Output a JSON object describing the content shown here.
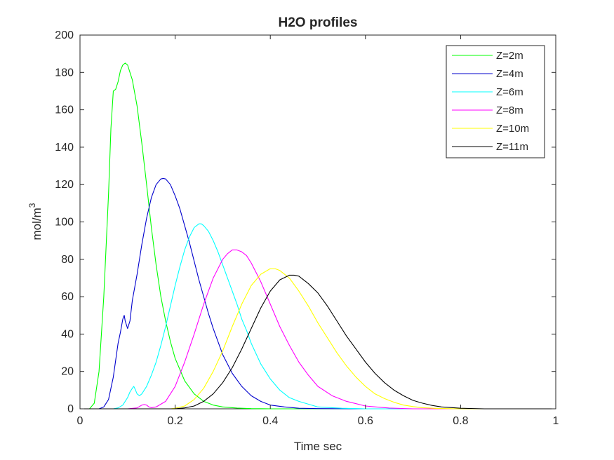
{
  "chart_data": {
    "type": "line",
    "title": "H2O profiles",
    "xlabel": "Time sec",
    "ylabel": "mol/m",
    "ylabel_superscript": "3",
    "xlim": [
      0,
      1
    ],
    "ylim": [
      0,
      200
    ],
    "xticks": [
      "0",
      "0.2",
      "0.4",
      "0.6",
      "0.8",
      "1"
    ],
    "yticks": [
      "0",
      "20",
      "40",
      "60",
      "80",
      "100",
      "120",
      "140",
      "160",
      "180",
      "200"
    ],
    "grid": false,
    "legend_position": "top-right",
    "series": [
      {
        "name": "Z=2m",
        "color": "#00ff00",
        "x": [
          0,
          0.02,
          0.03,
          0.04,
          0.05,
          0.06,
          0.065,
          0.07,
          0.075,
          0.08,
          0.085,
          0.09,
          0.095,
          0.1,
          0.11,
          0.12,
          0.13,
          0.14,
          0.15,
          0.16,
          0.17,
          0.18,
          0.19,
          0.2,
          0.22,
          0.24,
          0.26,
          0.28,
          0.3,
          0.33,
          0.36,
          0.4,
          0.5,
          1
        ],
        "y": [
          0,
          0,
          3,
          20,
          60,
          115,
          150,
          170,
          171,
          175,
          181,
          184,
          185,
          184,
          176,
          162,
          142,
          120,
          97,
          77,
          60,
          47,
          36,
          27,
          15,
          8,
          4,
          2,
          1,
          0.4,
          0.1,
          0,
          0,
          0
        ]
      },
      {
        "name": "Z=4m",
        "color": "#0000cd",
        "x": [
          0,
          0.04,
          0.05,
          0.06,
          0.07,
          0.08,
          0.085,
          0.09,
          0.093,
          0.095,
          0.1,
          0.105,
          0.11,
          0.12,
          0.13,
          0.14,
          0.15,
          0.16,
          0.17,
          0.175,
          0.18,
          0.19,
          0.2,
          0.21,
          0.22,
          0.23,
          0.24,
          0.25,
          0.26,
          0.27,
          0.28,
          0.29,
          0.3,
          0.32,
          0.34,
          0.36,
          0.38,
          0.4,
          0.43,
          0.46,
          0.5,
          0.6,
          1
        ],
        "y": [
          0,
          0,
          1,
          5,
          17,
          35,
          41,
          48,
          50,
          47,
          43,
          47,
          58,
          72,
          88,
          102,
          113,
          120,
          123,
          123.3,
          123,
          120,
          114,
          107,
          98,
          89,
          79,
          69,
          60,
          51,
          43,
          36,
          29,
          19,
          12,
          7,
          4,
          2,
          1,
          0.3,
          0.1,
          0,
          0
        ]
      },
      {
        "name": "Z=6m",
        "color": "#00ffff",
        "x": [
          0,
          0.07,
          0.08,
          0.09,
          0.1,
          0.105,
          0.11,
          0.113,
          0.115,
          0.12,
          0.125,
          0.13,
          0.14,
          0.15,
          0.16,
          0.17,
          0.18,
          0.19,
          0.2,
          0.21,
          0.22,
          0.23,
          0.24,
          0.25,
          0.255,
          0.26,
          0.27,
          0.28,
          0.29,
          0.3,
          0.31,
          0.32,
          0.33,
          0.34,
          0.35,
          0.36,
          0.38,
          0.4,
          0.42,
          0.44,
          0.46,
          0.5,
          0.55,
          0.6,
          1
        ],
        "y": [
          0,
          0,
          0.5,
          2,
          6,
          9,
          11,
          12,
          11,
          8,
          7,
          8,
          12,
          18,
          25,
          34,
          44,
          55,
          66,
          76,
          85,
          92,
          97,
          99,
          99,
          98,
          95,
          90,
          84,
          77,
          70,
          63,
          56,
          48,
          42,
          35,
          24,
          16,
          10,
          6,
          4,
          1,
          0.3,
          0,
          0
        ]
      },
      {
        "name": "Z=8m",
        "color": "#ff00ff",
        "x": [
          0,
          0.1,
          0.12,
          0.13,
          0.135,
          0.14,
          0.145,
          0.15,
          0.16,
          0.18,
          0.2,
          0.22,
          0.24,
          0.26,
          0.28,
          0.3,
          0.31,
          0.32,
          0.33,
          0.34,
          0.35,
          0.36,
          0.38,
          0.4,
          0.42,
          0.44,
          0.46,
          0.48,
          0.5,
          0.53,
          0.56,
          0.6,
          0.65,
          0.7,
          1
        ],
        "y": [
          0,
          0,
          0.5,
          2,
          2.3,
          2,
          1,
          0.6,
          1,
          4,
          12,
          25,
          40,
          56,
          70,
          80,
          83,
          85,
          85,
          84,
          82,
          78,
          68,
          56,
          44,
          34,
          25,
          18,
          12,
          7,
          4,
          1.5,
          0.4,
          0,
          0
        ]
      },
      {
        "name": "Z=10m",
        "color": "#ffff00",
        "x": [
          0,
          0.19,
          0.2,
          0.22,
          0.24,
          0.26,
          0.28,
          0.3,
          0.32,
          0.34,
          0.36,
          0.38,
          0.4,
          0.41,
          0.42,
          0.44,
          0.46,
          0.48,
          0.5,
          0.52,
          0.54,
          0.56,
          0.58,
          0.6,
          0.62,
          0.64,
          0.66,
          0.68,
          0.7,
          0.72,
          0.75,
          0.8,
          1
        ],
        "y": [
          0,
          0,
          0.3,
          1.5,
          5,
          11,
          20,
          31,
          44,
          56,
          66,
          72,
          75,
          75,
          74,
          70,
          63,
          55,
          46,
          38,
          30,
          23,
          17,
          12,
          8,
          5.5,
          3.5,
          2,
          1.2,
          0.6,
          0.2,
          0,
          0
        ]
      },
      {
        "name": "Z=11m",
        "color": "#000000",
        "x": [
          0,
          0.2,
          0.22,
          0.24,
          0.26,
          0.28,
          0.3,
          0.32,
          0.34,
          0.36,
          0.38,
          0.4,
          0.42,
          0.44,
          0.45,
          0.46,
          0.48,
          0.5,
          0.52,
          0.54,
          0.56,
          0.58,
          0.6,
          0.62,
          0.64,
          0.66,
          0.68,
          0.7,
          0.72,
          0.74,
          0.76,
          0.8,
          0.85,
          1
        ],
        "y": [
          0,
          0,
          0.5,
          1.5,
          4,
          8,
          14,
          22,
          32,
          43,
          54,
          63,
          69,
          71.5,
          71.5,
          71,
          67,
          62,
          55,
          47,
          39,
          32,
          25,
          19,
          14,
          10,
          7,
          4.5,
          3,
          1.8,
          1,
          0.3,
          0,
          0
        ]
      }
    ]
  }
}
